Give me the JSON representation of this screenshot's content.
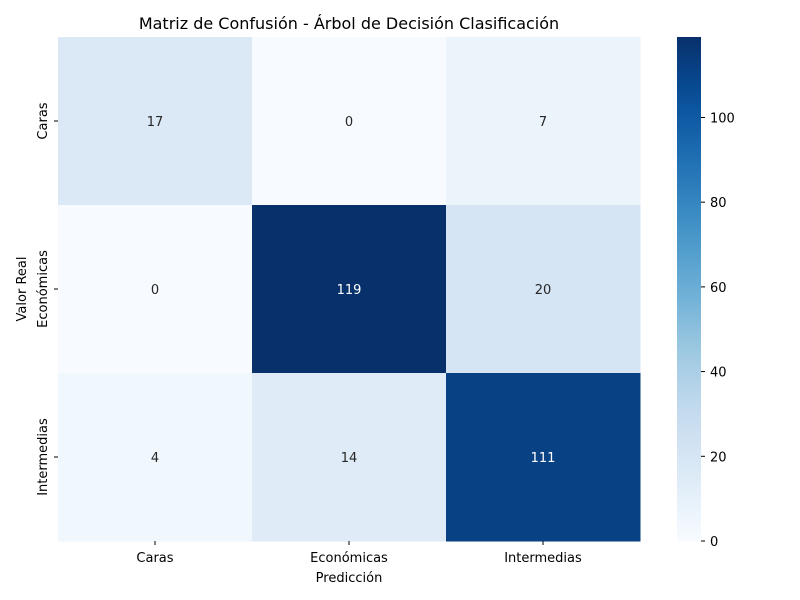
{
  "chart_data": {
    "type": "heatmap",
    "title": "Matriz de Confusión - Árbol de Decisión Clasificación",
    "xlabel": "Predicción",
    "ylabel": "Valor Real",
    "x_categories": [
      "Caras",
      "Económicas",
      "Intermedias"
    ],
    "y_categories": [
      "Caras",
      "Económicas",
      "Intermedias"
    ],
    "values": [
      [
        17,
        0,
        7
      ],
      [
        0,
        119,
        20
      ],
      [
        4,
        14,
        111
      ]
    ],
    "colormap": "Blues",
    "colorbar": {
      "vmin": 0,
      "vmax": 119,
      "ticks": [
        0,
        20,
        40,
        60,
        80,
        100
      ]
    },
    "colors": {
      "low": "#f7fbff",
      "high": "#08306b"
    }
  }
}
